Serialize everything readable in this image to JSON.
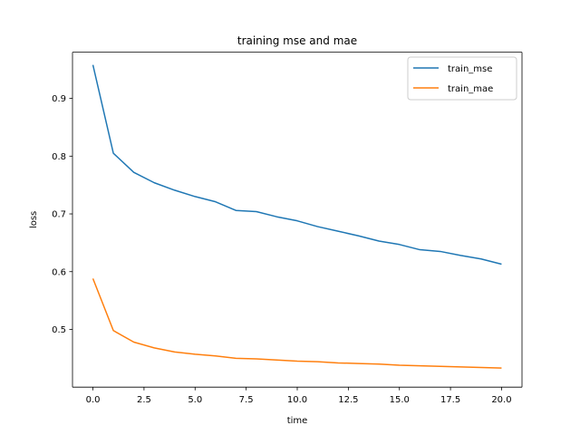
{
  "chart_data": {
    "type": "line",
    "title": "training mse and mae",
    "xlabel": "time",
    "ylabel": "loss",
    "xlim": [
      -1,
      21
    ],
    "ylim": [
      0.4,
      0.98
    ],
    "grid": false,
    "legend_position": "top-right",
    "xticks": [
      0.0,
      2.5,
      5.0,
      7.5,
      10.0,
      12.5,
      15.0,
      17.5,
      20.0
    ],
    "xtick_labels": [
      "0.0",
      "2.5",
      "5.0",
      "7.5",
      "10.0",
      "12.5",
      "15.0",
      "17.5",
      "20.0"
    ],
    "yticks": [
      0.5,
      0.6,
      0.7,
      0.8,
      0.9
    ],
    "ytick_labels": [
      "0.5",
      "0.6",
      "0.7",
      "0.8",
      "0.9"
    ],
    "x": [
      0,
      1,
      2,
      3,
      4,
      5,
      6,
      7,
      8,
      9,
      10,
      11,
      12,
      13,
      14,
      15,
      16,
      17,
      18,
      19,
      20
    ],
    "series": [
      {
        "name": "train_mse",
        "color": "#1f77b4",
        "values": [
          0.958,
          0.805,
          0.772,
          0.754,
          0.741,
          0.73,
          0.721,
          0.706,
          0.704,
          0.695,
          0.688,
          0.678,
          0.67,
          0.662,
          0.653,
          0.647,
          0.638,
          0.635,
          0.628,
          0.622,
          0.613
        ]
      },
      {
        "name": "train_mae",
        "color": "#ff7f0e",
        "values": [
          0.588,
          0.498,
          0.478,
          0.468,
          0.461,
          0.457,
          0.454,
          0.45,
          0.449,
          0.447,
          0.445,
          0.444,
          0.442,
          0.441,
          0.44,
          0.438,
          0.437,
          0.436,
          0.435,
          0.434,
          0.433
        ]
      }
    ]
  }
}
